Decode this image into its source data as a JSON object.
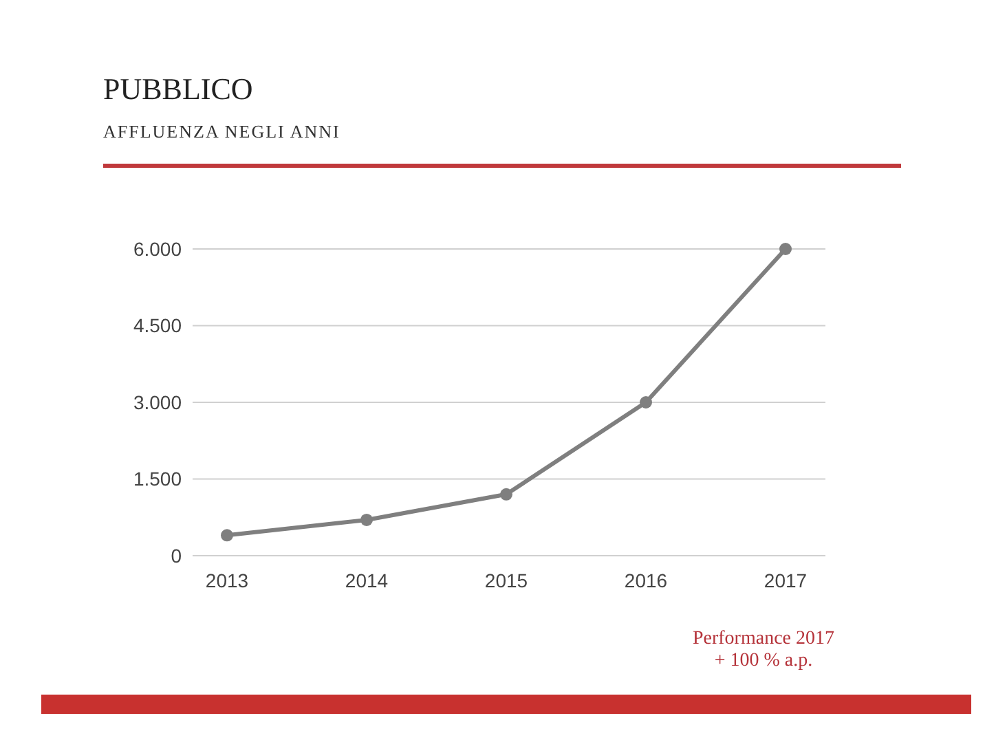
{
  "chart_data": {
    "type": "line",
    "title": "PUBBLICO",
    "subtitle": "AFFLUENZA NEGLI ANNI",
    "categories": [
      "2013",
      "2014",
      "2015",
      "2016",
      "2017"
    ],
    "series": [
      {
        "color": "#7f7f7f",
        "values": [
          400,
          700,
          1200,
          3000,
          6000
        ]
      }
    ],
    "ylim": [
      0,
      6000
    ],
    "yticks": [
      {
        "value": 0,
        "label": "0"
      },
      {
        "value": 1500,
        "label": "1.500"
      },
      {
        "value": 3000,
        "label": "3.000"
      },
      {
        "value": 4500,
        "label": "4.500"
      },
      {
        "value": 6000,
        "label": "6.000"
      }
    ],
    "grid": "y",
    "marker": "circle",
    "line_style": "solid",
    "annotations": [
      "Performance 2017",
      "+ 100 % a.p."
    ]
  }
}
